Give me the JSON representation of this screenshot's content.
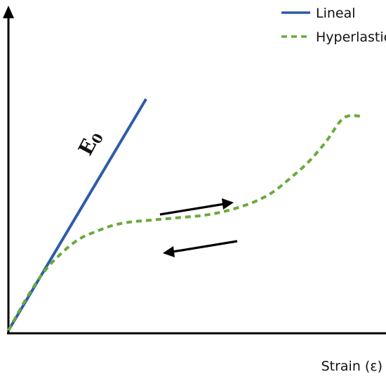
{
  "chart_data": {
    "type": "line",
    "title": "",
    "xlabel": "Strain (ε)",
    "ylabel": "",
    "xlim": [
      0,
      1
    ],
    "ylim": [
      0,
      1
    ],
    "grid": false,
    "legend_position": "top-right",
    "series": [
      {
        "name": "Lineal",
        "color": "#2E5CAA",
        "style": "solid",
        "x": [
          0,
          0.39
        ],
        "y": [
          0,
          0.735
        ]
      },
      {
        "name": "Hyperlastic",
        "color": "#6AAA3A",
        "style": "dashed",
        "x": [
          0,
          0.05,
          0.1,
          0.15,
          0.2,
          0.25,
          0.3,
          0.35,
          0.4,
          0.45,
          0.5,
          0.55,
          0.6,
          0.65,
          0.7,
          0.75,
          0.8,
          0.85,
          0.9,
          0.95,
          1.0
        ],
        "y": [
          0,
          0.1,
          0.185,
          0.245,
          0.29,
          0.315,
          0.335,
          0.345,
          0.35,
          0.355,
          0.36,
          0.365,
          0.375,
          0.39,
          0.41,
          0.44,
          0.485,
          0.535,
          0.6,
          0.675,
          0.68
        ]
      }
    ],
    "annotations": {
      "slope_label": "E",
      "slope_label_subscript": "0",
      "arrows": [
        {
          "name": "loading-arrow",
          "direction": "right"
        },
        {
          "name": "unloading-arrow",
          "direction": "left"
        }
      ]
    }
  }
}
